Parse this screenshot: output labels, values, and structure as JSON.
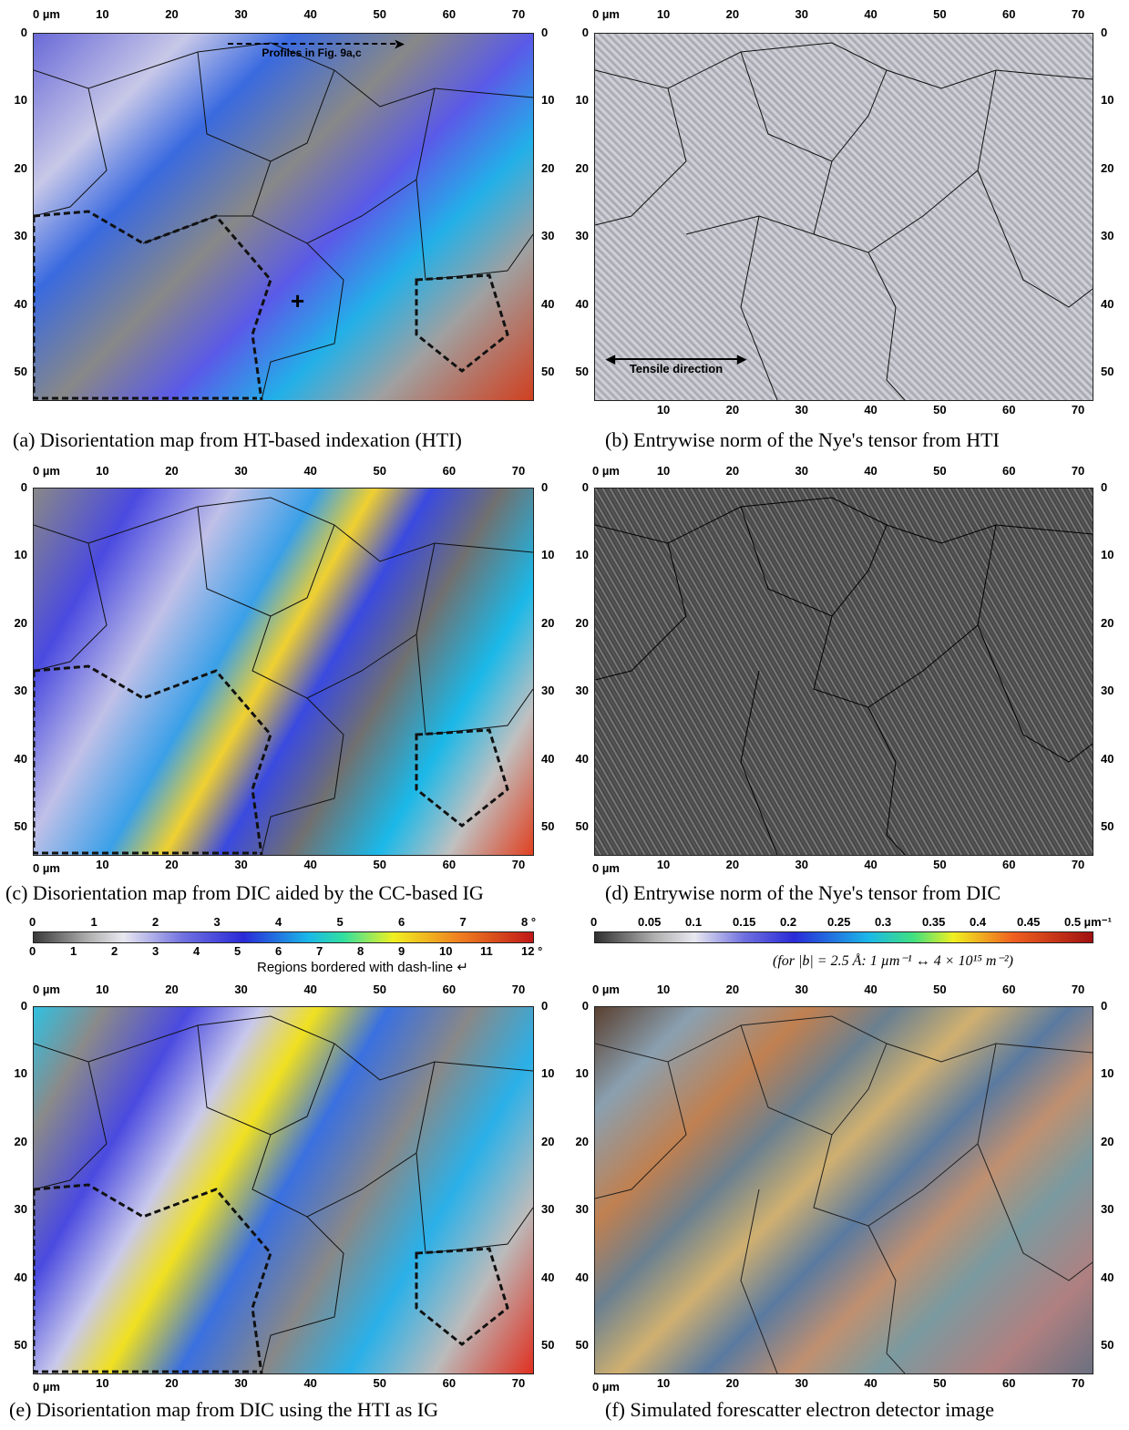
{
  "axis_unit": "µm",
  "x_ticks": [
    "10",
    "20",
    "30",
    "40",
    "50",
    "60",
    "70"
  ],
  "y_ticks": [
    "0",
    "10",
    "20",
    "30",
    "40",
    "50"
  ],
  "panels": {
    "a": {
      "caption": "(a)  Disorientation map from HT-based indexation (HTI)",
      "annotation_profiles": "Profiles in Fig. 9a,c"
    },
    "b": {
      "caption": "(b)  Entrywise norm of the Nye's tensor from HTI",
      "annotation_tensile": "Tensile direction"
    },
    "c": {
      "caption": "(c)  Disorientation map from DIC aided by the CC-based IG"
    },
    "d": {
      "caption": "(d)  Entrywise norm of the Nye's tensor from DIC"
    },
    "e": {
      "caption": "(e)  Disorientation map from DIC using the HTI as IG"
    },
    "f": {
      "caption": "(f)  Simulated forescatter electron detector image"
    }
  },
  "colorbar_disorientation": {
    "top_ticks": [
      "0",
      "1",
      "2",
      "3",
      "4",
      "5",
      "6",
      "7",
      "8 °"
    ],
    "bottom_ticks": [
      "0",
      "1",
      "2",
      "3",
      "4",
      "5",
      "6",
      "7",
      "8",
      "9",
      "10",
      "11",
      "12 °"
    ],
    "note": "Regions bordered with dash-line"
  },
  "colorbar_nye": {
    "ticks": [
      "0",
      "0.05",
      "0.1",
      "0.15",
      "0.2",
      "0.25",
      "0.3",
      "0.35",
      "0.4",
      "0.45",
      "0.5 µm⁻¹"
    ],
    "conversion": "(for |b| = 2.5 Å: 1 µm⁻¹ ↔ 4 × 10¹⁵ m⁻²)"
  },
  "colors": {
    "gray_low": "#4a4a4a",
    "blue_mid": "#3a3ad8",
    "cyan": "#1ab8e8",
    "yellow": "#f0e020",
    "red_high": "#c01818"
  }
}
